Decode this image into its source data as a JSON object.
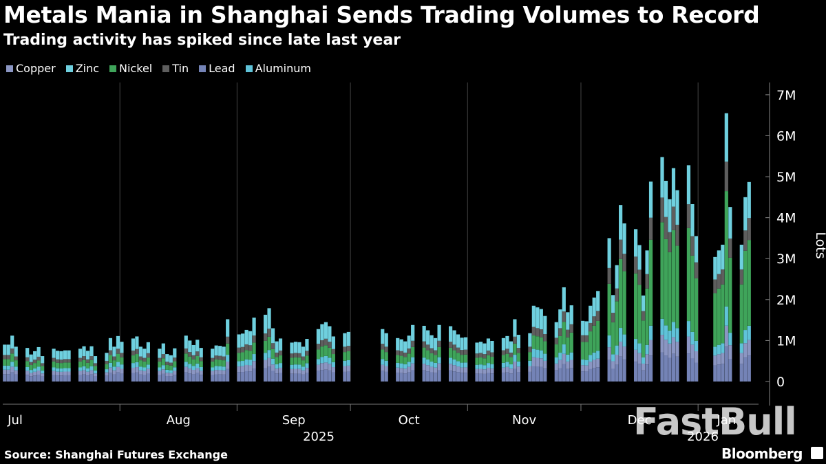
{
  "header": {
    "title": "Metals Mania in Shanghai Sends Trading Volumes to Record",
    "subtitle": "Trading activity has spiked since late last year"
  },
  "footer": {
    "source": "Source: Shanghai Futures Exchange",
    "brand": "Bloomberg",
    "watermark": "FastBull"
  },
  "colors": {
    "background": "#000000",
    "copper": "#8b96c3",
    "zinc": "#6fd0df",
    "nickel": "#3fa45a",
    "tin": "#5e5e5e",
    "lead": "#7483b6",
    "aluminum": "#5fc3d9",
    "grid": "#444444"
  },
  "chart_data": {
    "type": "bar",
    "stacked": true,
    "ylabel": "Lots",
    "ylim": [
      0,
      7300000
    ],
    "yticks": [
      0,
      1000000,
      2000000,
      3000000,
      4000000,
      5000000,
      6000000,
      7000000
    ],
    "ytick_labels": [
      "0",
      "1M",
      "2M",
      "3M",
      "4M",
      "5M",
      "6M",
      "7M"
    ],
    "x_axis": {
      "months": [
        "Jul",
        "Aug",
        "Sep",
        "Oct",
        "Nov",
        "Dec",
        "Jan"
      ],
      "years": [
        "2025",
        "2026"
      ],
      "start": "2025-07-01",
      "end": "2026-01-16"
    },
    "legend_position": "top-left",
    "grid": "vertical",
    "series_names": [
      "Copper",
      "Zinc",
      "Nickel",
      "Tin",
      "Lead",
      "Aluminum"
    ],
    "dates": [
      "2025-07-01",
      "2025-07-02",
      "2025-07-03",
      "2025-07-04",
      "2025-07-07",
      "2025-07-08",
      "2025-07-09",
      "2025-07-10",
      "2025-07-11",
      "2025-07-14",
      "2025-07-15",
      "2025-07-16",
      "2025-07-17",
      "2025-07-18",
      "2025-07-21",
      "2025-07-22",
      "2025-07-23",
      "2025-07-24",
      "2025-07-25",
      "2025-07-28",
      "2025-07-29",
      "2025-07-30",
      "2025-07-31",
      "2025-08-01",
      "2025-08-04",
      "2025-08-05",
      "2025-08-06",
      "2025-08-07",
      "2025-08-08",
      "2025-08-11",
      "2025-08-12",
      "2025-08-13",
      "2025-08-14",
      "2025-08-15",
      "2025-08-18",
      "2025-08-19",
      "2025-08-20",
      "2025-08-21",
      "2025-08-22",
      "2025-08-25",
      "2025-08-26",
      "2025-08-27",
      "2025-08-28",
      "2025-08-29",
      "2025-09-01",
      "2025-09-02",
      "2025-09-03",
      "2025-09-04",
      "2025-09-05",
      "2025-09-08",
      "2025-09-09",
      "2025-09-10",
      "2025-09-11",
      "2025-09-12",
      "2025-09-15",
      "2025-09-16",
      "2025-09-17",
      "2025-09-18",
      "2025-09-19",
      "2025-09-22",
      "2025-09-23",
      "2025-09-24",
      "2025-09-25",
      "2025-09-26",
      "2025-09-29",
      "2025-09-30",
      "2025-10-09",
      "2025-10-10",
      "2025-10-13",
      "2025-10-14",
      "2025-10-15",
      "2025-10-16",
      "2025-10-17",
      "2025-10-20",
      "2025-10-21",
      "2025-10-22",
      "2025-10-23",
      "2025-10-24",
      "2025-10-27",
      "2025-10-28",
      "2025-10-29",
      "2025-10-30",
      "2025-10-31",
      "2025-11-03",
      "2025-11-04",
      "2025-11-05",
      "2025-11-06",
      "2025-11-07",
      "2025-11-10",
      "2025-11-11",
      "2025-11-12",
      "2025-11-13",
      "2025-11-14",
      "2025-11-17",
      "2025-11-18",
      "2025-11-19",
      "2025-11-20",
      "2025-11-21",
      "2025-11-24",
      "2025-11-25",
      "2025-11-26",
      "2025-11-27",
      "2025-11-28",
      "2025-12-01",
      "2025-12-02",
      "2025-12-03",
      "2025-12-04",
      "2025-12-05",
      "2025-12-08",
      "2025-12-09",
      "2025-12-10",
      "2025-12-11",
      "2025-12-12",
      "2025-12-15",
      "2025-12-16",
      "2025-12-17",
      "2025-12-18",
      "2025-12-19",
      "2025-12-22",
      "2025-12-23",
      "2025-12-24",
      "2025-12-25",
      "2025-12-26",
      "2025-12-29",
      "2025-12-30",
      "2025-12-31",
      "2026-01-05",
      "2026-01-06",
      "2026-01-07",
      "2026-01-08",
      "2026-01-09",
      "2026-01-12",
      "2026-01-13",
      "2026-01-14",
      "2026-01-15",
      "2026-01-16"
    ],
    "totals": [
      0.9,
      0.9,
      1.12,
      0.85,
      0.82,
      0.66,
      0.74,
      0.84,
      0.62,
      0.8,
      0.75,
      0.74,
      0.76,
      0.76,
      0.8,
      0.86,
      0.75,
      0.86,
      0.62,
      0.7,
      1.06,
      0.85,
      1.11,
      0.97,
      1.05,
      1.1,
      0.85,
      0.8,
      0.96,
      0.8,
      0.93,
      0.67,
      0.64,
      0.81,
      1.12,
      1.0,
      0.89,
      1.02,
      0.82,
      0.8,
      0.88,
      0.87,
      0.85,
      1.52,
      1.15,
      1.17,
      1.26,
      1.23,
      1.56,
      1.63,
      1.79,
      1.3,
      0.98,
      1.05,
      0.95,
      0.97,
      0.96,
      0.85,
      1.04,
      1.28,
      1.4,
      1.45,
      1.35,
      1.1,
      1.18,
      1.21,
      1.28,
      1.18,
      1.06,
      1.03,
      0.98,
      1.12,
      1.38,
      1.36,
      1.25,
      1.13,
      1.06,
      1.38,
      1.35,
      1.25,
      1.15,
      1.07,
      1.08,
      0.95,
      0.97,
      0.93,
      1.05,
      0.99,
      1.06,
      1.11,
      0.98,
      1.52,
      1.14,
      1.18,
      1.85,
      1.81,
      1.77,
      1.6,
      1.45,
      1.76,
      2.3,
      1.69,
      1.86,
      1.48,
      1.47,
      1.85,
      2.05,
      2.21,
      3.5,
      2.11,
      2.84,
      4.31,
      3.86,
      3.72,
      3.33,
      2.1,
      3.2,
      4.88,
      5.48,
      4.9,
      4.45,
      5.21,
      4.67,
      5.28,
      4.33,
      3.55,
      3.04,
      3.2,
      3.34,
      3.43,
      4.26,
      3.34,
      4.5,
      4.87
    ],
    "spike_overrides": {
      "2026-01-08": 6.55
    }
  }
}
